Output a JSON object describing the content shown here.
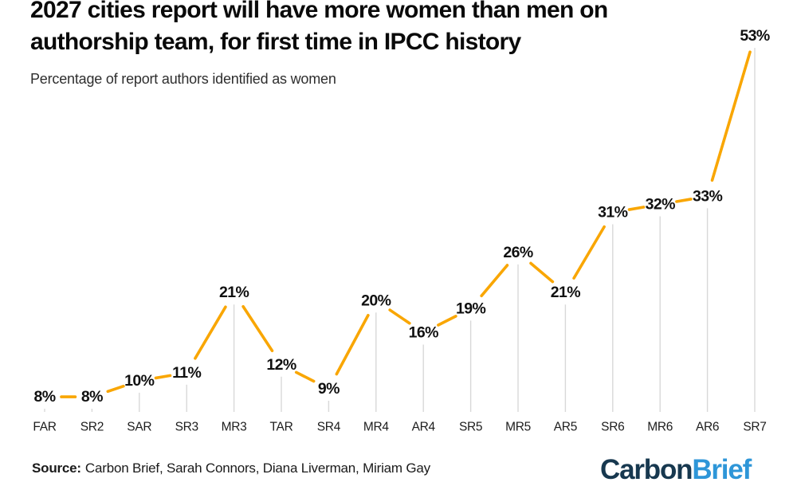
{
  "header": {
    "title_lines": [
      "2027 cities report will have more women than men on",
      "authorship team, for first time in IPCC history"
    ],
    "subtitle": "Percentage of report authors identified as women"
  },
  "chart_data": {
    "type": "line",
    "title": "2027 cities report will have more women than men on authorship team, for first time in IPCC history",
    "subtitle": "Percentage of report authors identified as women",
    "categories": [
      "FAR",
      "SR2",
      "SAR",
      "SR3",
      "MR3",
      "TAR",
      "SR4",
      "MR4",
      "AR4",
      "SR5",
      "MR5",
      "AR5",
      "SR6",
      "MR6",
      "AR6",
      "SR7"
    ],
    "values": [
      8,
      8,
      10,
      11,
      21,
      12,
      9,
      20,
      16,
      19,
      26,
      21,
      31,
      32,
      33,
      53
    ],
    "point_labels": [
      "8%",
      "8%",
      "10%",
      "11%",
      "21%",
      "12%",
      "9%",
      "20%",
      "16%",
      "19%",
      "26%",
      "21%",
      "31%",
      "32%",
      "33%",
      "53%"
    ],
    "xlabel": "",
    "ylabel": "Percentage of report authors identified as women",
    "ylim": [
      0,
      55
    ],
    "grid": false,
    "legend": false,
    "line_color": "#F9A602",
    "stem_color": "#D8D8D8"
  },
  "footer": {
    "source_label": "Source:",
    "source_text": "Carbon Brief, Sarah Connors, Diana Liverman, Miriam Gay",
    "logo": {
      "part1": "Carbon",
      "part2": "Brief"
    }
  },
  "colors": {
    "accent_orange": "#F9A602",
    "stem_gray": "#D8D8D8",
    "logo_navy": "#17384F",
    "logo_blue": "#2E96D8",
    "text_black": "#0A0A0A"
  }
}
